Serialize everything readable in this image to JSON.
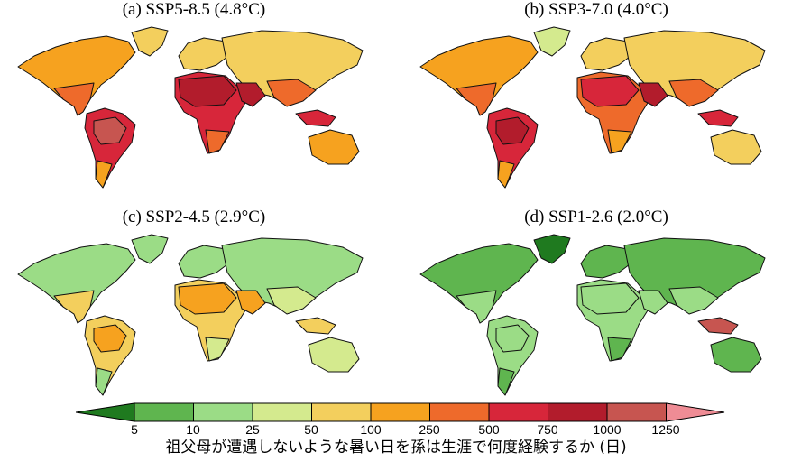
{
  "panels": [
    {
      "id": "a",
      "title": "(a) SSP5-8.5 (4.8°C)"
    },
    {
      "id": "b",
      "title": "(b) SSP3-7.0 (4.0°C)"
    },
    {
      "id": "c",
      "title": "(c) SSP2-4.5 (2.9°C)"
    },
    {
      "id": "d",
      "title": "(d) SSP1-2.6 (2.0°C)"
    }
  ],
  "colorbar": {
    "ticks": [
      "5",
      "10",
      "25",
      "50",
      "100",
      "250",
      "500",
      "750",
      "1000",
      "1250"
    ],
    "colors": [
      "#1f7a1f",
      "#5fb54f",
      "#9bdc86",
      "#d4ea8e",
      "#f3cf5d",
      "#f6a21f",
      "#ee6a2b",
      "#d7263a",
      "#b21c2c",
      "#c75550",
      "#ef8c95"
    ],
    "label": "祖父母が遭遇しないような暑い日を孫は生涯で何度経験するか (日)"
  },
  "map_colors": {
    "a": {
      "na": "#f6a21f",
      "na_south": "#ee6a2b",
      "greenland": "#f3cf5d",
      "sa": "#d7263a",
      "sa_core": "#c75550",
      "sa_south": "#f6a21f",
      "europe": "#f3cf5d",
      "africa": "#d7263a",
      "africa_north": "#b21c2c",
      "africa_south": "#ee6a2b",
      "asia": "#f3cf5d",
      "asia_south": "#ee6a2b",
      "arabia": "#b21c2c",
      "australia": "#f6a21f",
      "islands": "#d7263a"
    },
    "b": {
      "na": "#f6a21f",
      "na_south": "#ee6a2b",
      "greenland": "#d4ea8e",
      "sa": "#d7263a",
      "sa_core": "#b21c2c",
      "sa_south": "#f6a21f",
      "europe": "#f3cf5d",
      "africa": "#ee6a2b",
      "africa_north": "#d7263a",
      "africa_south": "#f6a21f",
      "asia": "#f3cf5d",
      "asia_south": "#ee6a2b",
      "arabia": "#b21c2c",
      "australia": "#f3cf5d",
      "islands": "#d7263a"
    },
    "c": {
      "na": "#9bdc86",
      "na_south": "#f3cf5d",
      "greenland": "#9bdc86",
      "sa": "#f3cf5d",
      "sa_core": "#f6a21f",
      "sa_south": "#9bdc86",
      "europe": "#9bdc86",
      "africa": "#f3cf5d",
      "africa_north": "#f6a21f",
      "africa_south": "#d4ea8e",
      "asia": "#9bdc86",
      "asia_south": "#d4ea8e",
      "arabia": "#f6a21f",
      "australia": "#d4ea8e",
      "islands": "#f3cf5d"
    },
    "d": {
      "na": "#5fb54f",
      "na_south": "#9bdc86",
      "greenland": "#1f7a1f",
      "sa": "#9bdc86",
      "sa_core": "#9bdc86",
      "sa_south": "#5fb54f",
      "europe": "#5fb54f",
      "africa": "#9bdc86",
      "africa_north": "#9bdc86",
      "africa_south": "#5fb54f",
      "asia": "#5fb54f",
      "asia_south": "#9bdc86",
      "arabia": "#9bdc86",
      "australia": "#5fb54f",
      "islands": "#c75550"
    }
  }
}
